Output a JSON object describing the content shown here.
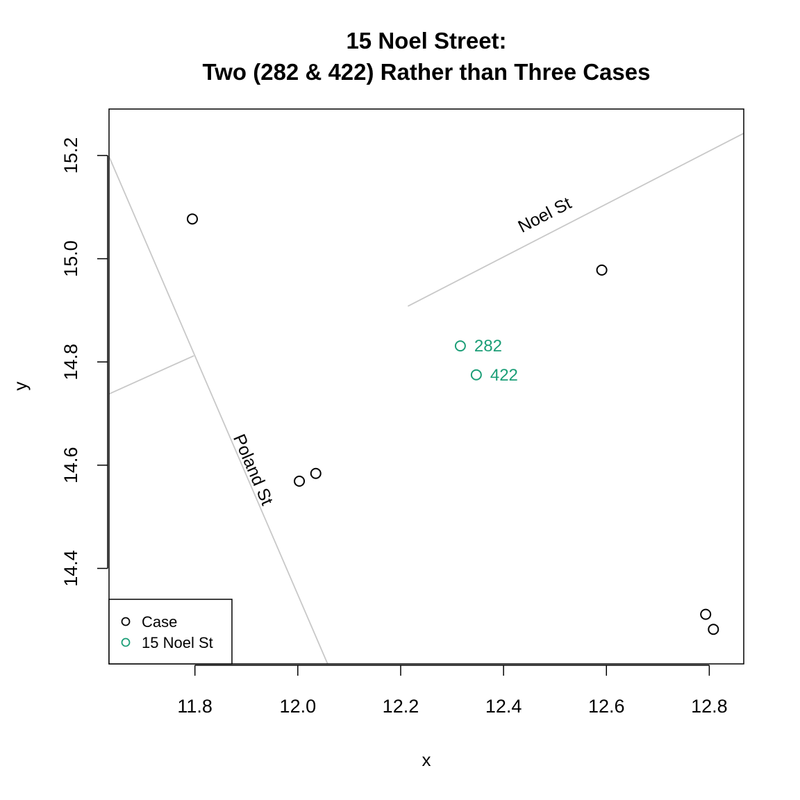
{
  "chart_data": {
    "type": "scatter",
    "title": [
      "15 Noel Street:",
      "Two (282 & 422) Rather than Three Cases"
    ],
    "xlabel": "x",
    "ylabel": "y",
    "xlim": [
      11.633,
      12.867
    ],
    "ylim": [
      14.215,
      15.29
    ],
    "x_ticks": [
      "11.8",
      "12.0",
      "12.2",
      "12.4",
      "12.6",
      "12.8"
    ],
    "y_ticks": [
      "14.4",
      "14.6",
      "14.8",
      "15.0",
      "15.2"
    ],
    "grid": false,
    "legend": {
      "position": "bottom-left",
      "entries": [
        {
          "label": "Case",
          "color": "#000000"
        },
        {
          "label": "15 Noel St",
          "color": "#1b9e77"
        }
      ]
    },
    "series": [
      {
        "name": "Case",
        "color": "#000000",
        "points": [
          {
            "x": 11.795,
            "y": 15.077
          },
          {
            "x": 12.591,
            "y": 14.978
          },
          {
            "x": 12.003,
            "y": 14.569
          },
          {
            "x": 12.035,
            "y": 14.584
          },
          {
            "x": 12.793,
            "y": 14.311
          },
          {
            "x": 12.808,
            "y": 14.282
          }
        ]
      },
      {
        "name": "15 Noel St",
        "color": "#1b9e77",
        "points": [
          {
            "x": 12.316,
            "y": 14.831,
            "label": "282"
          },
          {
            "x": 12.347,
            "y": 14.775,
            "label": "422"
          }
        ]
      }
    ],
    "streets": [
      {
        "name": "Noel St",
        "color": "#c8c8c8",
        "label": "Noel St",
        "points": [
          [
            12.214,
            14.908
          ],
          [
            12.867,
            15.243
          ]
        ],
        "label_at": {
          "x": 12.485,
          "y": 15.075
        }
      },
      {
        "name": "Poland St",
        "color": "#c8c8c8",
        "label": "Poland St",
        "points": [
          [
            11.633,
            15.198
          ],
          [
            12.058,
            14.215
          ]
        ],
        "label_at": {
          "x": 11.903,
          "y": 14.587
        }
      },
      {
        "name": "side street",
        "color": "#c8c8c8",
        "points": [
          [
            11.633,
            14.738
          ],
          [
            11.798,
            14.812
          ]
        ]
      }
    ]
  }
}
